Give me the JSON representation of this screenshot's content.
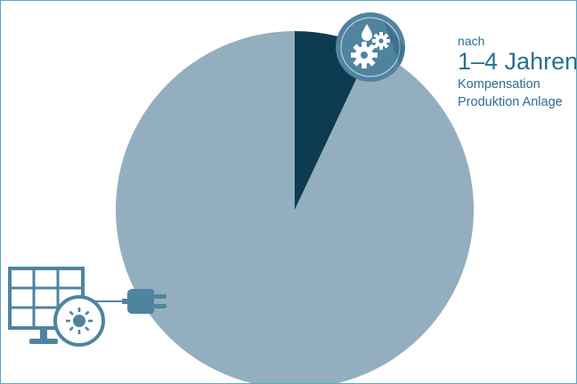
{
  "chart_data": {
    "type": "pie",
    "title": "",
    "slices": [
      {
        "label": "Kompensation Produktion Anlage",
        "value": 7,
        "color": "#0d3b52"
      },
      {
        "label": "",
        "value": 93,
        "color": "#93aebf"
      }
    ]
  },
  "annotation": {
    "line1": "nach",
    "line2": "1–4 Jahren",
    "line3": "Kompensation",
    "line4": "Produktion Anlage"
  },
  "icons": {
    "production": "gears-and-drop-icon",
    "source": "solar-panel-with-sun-icon",
    "connector": "power-plug-icon"
  },
  "colors": {
    "light_slice": "#93aebf",
    "dark_slice": "#0d3b52",
    "icon_fill": "#4f84a1",
    "label_text": "#2a6f8f",
    "frame": "#5aa8c8"
  }
}
